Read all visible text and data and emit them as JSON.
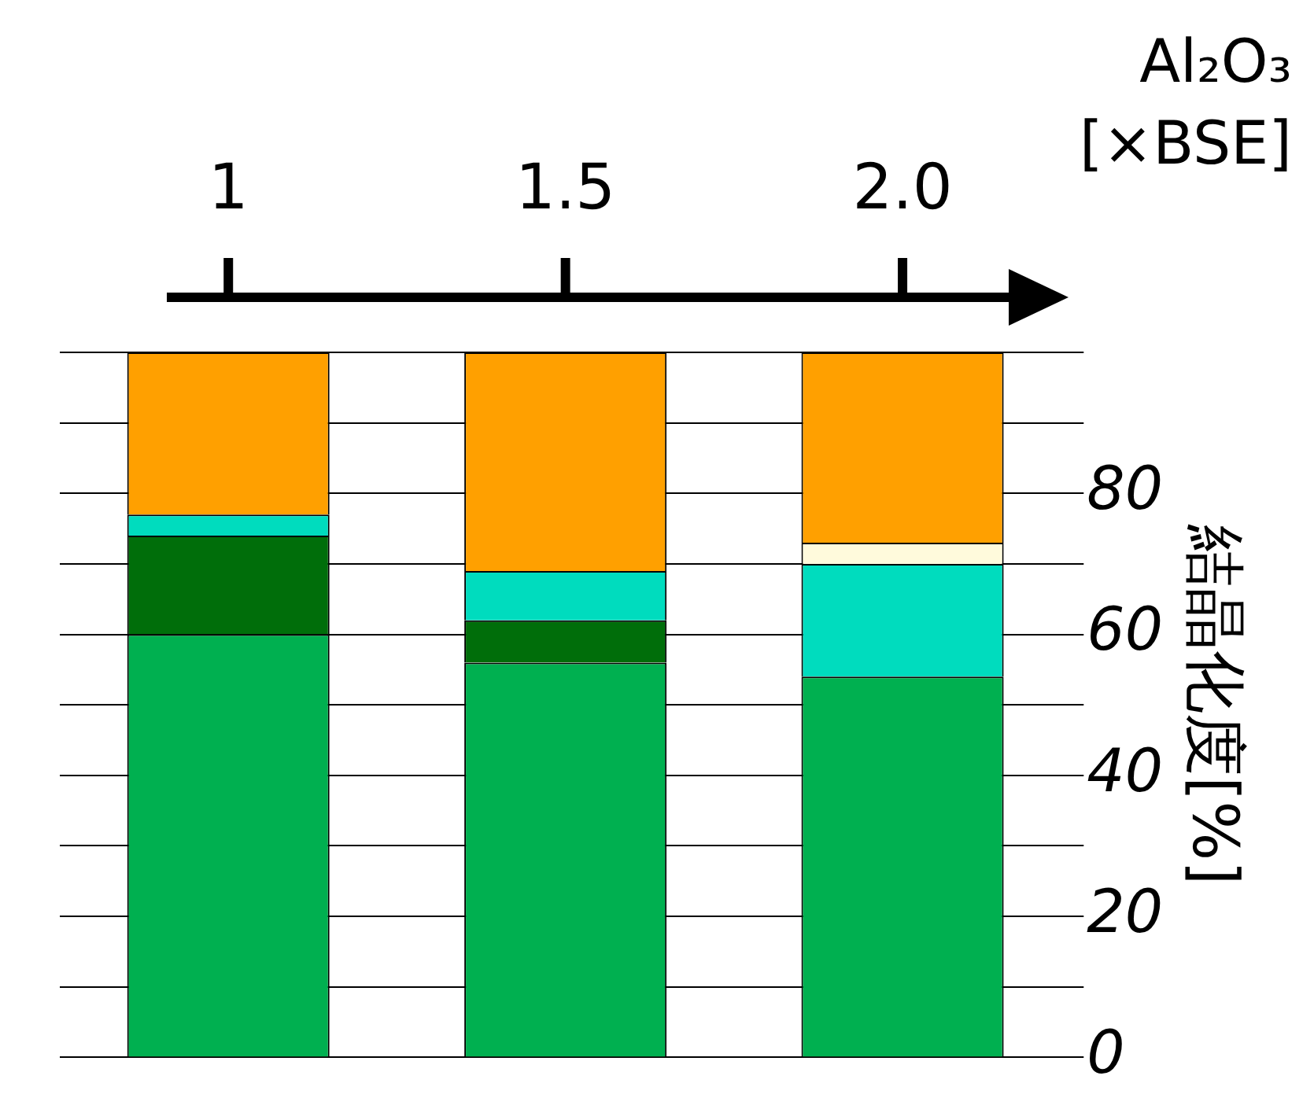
{
  "chart_data": {
    "type": "bar",
    "stacked": true,
    "xlabel": "Al₂O₃ [×BSE]",
    "ylabel": "結晶化度[%]",
    "categories": [
      "1",
      "1.5",
      "2.0"
    ],
    "ylim": [
      0,
      100
    ],
    "yticks": [
      0,
      {
        "value": 10,
        "label": null
      },
      20,
      {
        "value": 30,
        "label": null
      },
      40,
      {
        "value": 50,
        "label": null
      },
      60,
      {
        "value": 70,
        "label": null
      },
      80,
      {
        "value": 90,
        "label": null
      },
      {
        "value": 100,
        "label": null
      }
    ],
    "grid": "y",
    "series": [
      {
        "color": "#00b050",
        "values": [
          60,
          56,
          54
        ]
      },
      {
        "color": "#006e0a",
        "values": [
          14,
          6,
          0
        ]
      },
      {
        "color": "#00dcbe",
        "values": [
          3,
          7,
          16
        ]
      },
      {
        "color": "#fffadc",
        "values": [
          0,
          0,
          3
        ]
      },
      {
        "color": "#ffa000",
        "values": [
          23,
          31,
          27
        ]
      }
    ]
  }
}
